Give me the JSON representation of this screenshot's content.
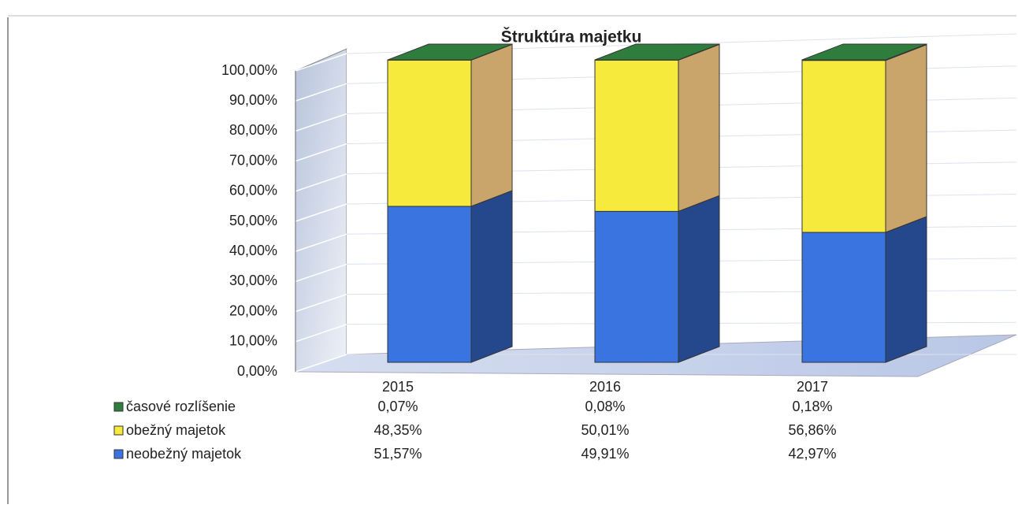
{
  "chart_data": {
    "type": "bar",
    "stacked": true,
    "title": "Štruktúra majetku",
    "categories": [
      "2015",
      "2016",
      "2017"
    ],
    "series": [
      {
        "name": "časové rozlíšenie",
        "color": "#2f7d3c",
        "values": [
          0.07,
          0.08,
          0.18
        ],
        "value_labels": [
          "0,07%",
          "0,08%",
          "0,18%"
        ]
      },
      {
        "name": "obežný majetok",
        "color": "#f6ea3c",
        "values": [
          48.35,
          50.01,
          56.86
        ],
        "value_labels": [
          "48,35%",
          "50,01%",
          "56,86%"
        ]
      },
      {
        "name": "neobežný majetok",
        "color": "#3a74e0",
        "values": [
          51.57,
          49.91,
          42.97
        ],
        "value_labels": [
          "51,57%",
          "49,91%",
          "42,97%"
        ]
      }
    ],
    "ylim": [
      0,
      100
    ],
    "yticks": [
      {
        "value": 0,
        "label": "0,00%"
      },
      {
        "value": 10,
        "label": "10,00%"
      },
      {
        "value": 20,
        "label": "20,00%"
      },
      {
        "value": 30,
        "label": "30,00%"
      },
      {
        "value": 40,
        "label": "40,00%"
      },
      {
        "value": 50,
        "label": "50,00%"
      },
      {
        "value": 60,
        "label": "60,00%"
      },
      {
        "value": 70,
        "label": "70,00%"
      },
      {
        "value": 80,
        "label": "80,00%"
      },
      {
        "value": 90,
        "label": "90,00%"
      },
      {
        "value": 100,
        "label": "100,00%"
      }
    ],
    "grid": true
  }
}
